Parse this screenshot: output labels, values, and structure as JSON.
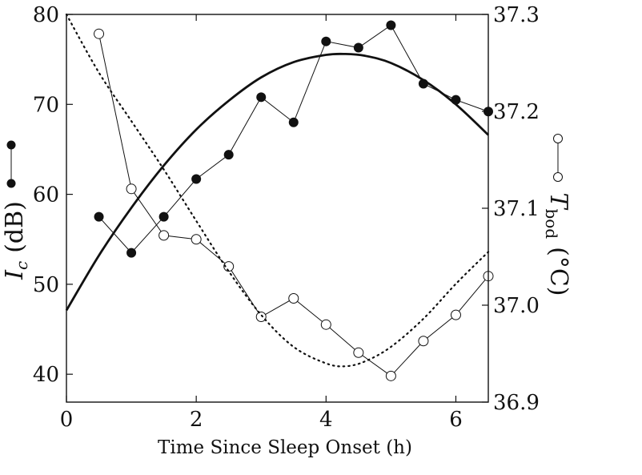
{
  "chart_data": {
    "type": "line",
    "xlabel": "Time Since Sleep Onset (h)",
    "xlim": [
      0,
      6.5
    ],
    "xticks": [
      "0",
      "2",
      "4",
      "6"
    ],
    "y_left": {
      "label_symbol": "I",
      "label_subscript": "c",
      "label_unit": "(dB)",
      "ylim": [
        36.9,
        80
      ],
      "ticks": [
        "40",
        "50",
        "60",
        "70",
        "80"
      ]
    },
    "y_right": {
      "label_symbol": "T",
      "label_subscript": "bod",
      "label_unit": "(°C)",
      "ylim": [
        36.9,
        37.3
      ],
      "ticks": [
        "36.9",
        "37.0",
        "37.1",
        "37.2",
        "37.3"
      ]
    },
    "series": [
      {
        "axis": "left",
        "style": "filled-markers",
        "x": [
          0.5,
          1.0,
          1.5,
          2.0,
          2.5,
          3.0,
          3.5,
          4.0,
          4.5,
          5.0,
          5.5,
          6.0,
          6.5
        ],
        "y": [
          57.5,
          53.5,
          57.5,
          61.7,
          64.4,
          70.8,
          68.0,
          77.0,
          76.3,
          78.8,
          72.3,
          70.5,
          69.2
        ]
      },
      {
        "axis": "right",
        "style": "open-markers",
        "x": [
          0.5,
          1.0,
          1.5,
          2.0,
          2.5,
          3.0,
          3.5,
          4.0,
          4.5,
          5.0,
          5.5,
          6.0,
          6.5
        ],
        "y": [
          37.28,
          37.12,
          37.072,
          37.068,
          37.04,
          36.988,
          37.007,
          36.98,
          36.951,
          36.927,
          36.963,
          36.99,
          37.03
        ]
      },
      {
        "axis": "left",
        "style": "solid-curve",
        "x": [
          0,
          0.5,
          1.0,
          1.5,
          2.0,
          2.5,
          3.0,
          3.5,
          4.0,
          4.3,
          4.6,
          5.0,
          5.5,
          6.0,
          6.5
        ],
        "y": [
          47.1,
          53.2,
          58.5,
          63.2,
          67.2,
          70.4,
          73.0,
          74.7,
          75.5,
          75.6,
          75.4,
          74.6,
          72.7,
          70.0,
          66.6
        ]
      },
      {
        "axis": "right",
        "style": "dotted-curve",
        "x": [
          0,
          0.5,
          1.0,
          1.5,
          2.0,
          2.5,
          3.0,
          3.5,
          4.0,
          4.3,
          4.6,
          5.0,
          5.5,
          6.0,
          6.5
        ],
        "y": [
          37.3,
          37.24,
          37.19,
          37.14,
          37.087,
          37.035,
          36.99,
          36.957,
          36.94,
          36.937,
          36.942,
          36.957,
          36.986,
          37.022,
          37.055
        ]
      }
    ]
  }
}
